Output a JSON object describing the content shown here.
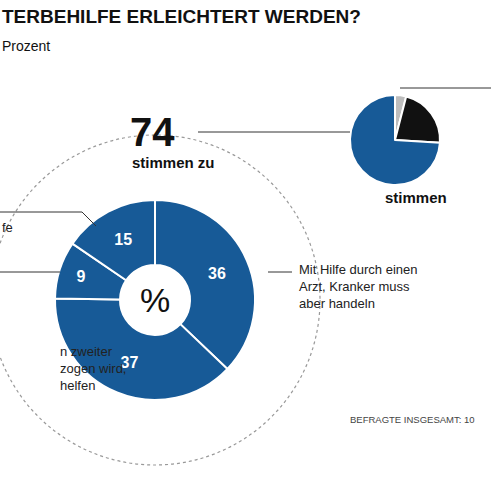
{
  "chart_data": [
    {
      "type": "pie",
      "title": "TERBEHILFE ERLEICHTERT WERDEN?",
      "subtitle": "Prozent",
      "categories": [
        "Mit Hilfe durch einen\nArzt, Kranker muss\naber handeln",
        "n zweiter\nzogen wird,\nhelfen",
        null,
        "fe"
      ],
      "values": [
        36,
        37,
        9,
        15
      ],
      "color": "#175a97",
      "data_labels": true,
      "headline": "74",
      "headline_label": "stimmen zu",
      "center_label": "%",
      "note": "BEFRAGTE INSGESAMT: 10"
    },
    {
      "type": "pie",
      "categories": [
        null,
        null,
        null
      ],
      "values": [
        4,
        22,
        74
      ],
      "colors": [
        "#bdbdbd",
        "#111111",
        "#175a97"
      ],
      "data_labels": false,
      "label": "stimmen"
    }
  ]
}
